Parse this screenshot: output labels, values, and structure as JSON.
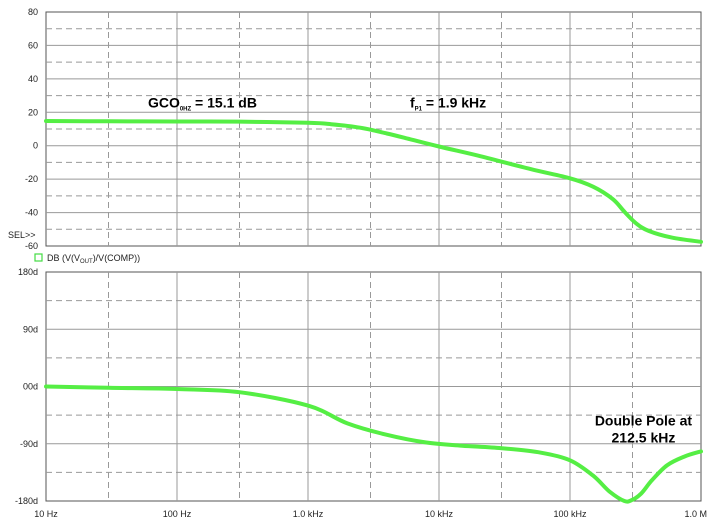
{
  "chart_data": [
    {
      "type": "line",
      "panel": "magnitude",
      "xscale": "log",
      "xlim": [
        10,
        1000000
      ],
      "ylim": [
        -60,
        80
      ],
      "yticks": [
        "80",
        "60",
        "40",
        "20",
        "0",
        "-20",
        "-40",
        "-60"
      ],
      "grid": true,
      "sel_marker": "SEL>>",
      "series": [
        {
          "color": "#55ee44",
          "x": [
            10,
            30,
            100,
            300,
            1000,
            1500,
            2500,
            4000,
            6000,
            10000,
            20000,
            50000,
            100000,
            150000,
            212500,
            260000,
            320000,
            400000,
            600000,
            1000000
          ],
          "y": [
            14.8,
            14.6,
            14.5,
            14.4,
            13.7,
            12.9,
            10.8,
            7.3,
            3.9,
            -0.5,
            -6.0,
            -14.0,
            -19.5,
            -24.5,
            -32.0,
            -39.5,
            -46.5,
            -51.0,
            -55.0,
            -57.5
          ]
        }
      ],
      "annotations": [
        {
          "main": "GCO",
          "sub": "0HZ",
          "tail": " = 15.1 dB",
          "at": [
            60,
            26
          ]
        },
        {
          "main": "f",
          "sub": "P1",
          "tail": " = 1.9 kHz",
          "at": [
            6000,
            26
          ]
        }
      ]
    },
    {
      "type": "line",
      "panel": "phase",
      "xscale": "log",
      "xlim": [
        10,
        1000000
      ],
      "ylim": [
        -180,
        180
      ],
      "yticks": [
        "180d",
        "90d",
        "00d",
        "-90d",
        "-180d"
      ],
      "xticks": [
        "10 Hz",
        "100 Hz",
        "1.0 kHz",
        "10 kHz",
        "100 kHz",
        "1.0 M"
      ],
      "grid": true,
      "legend": {
        "label_prefix": "DB (V(V",
        "label_sub": "OUT",
        "label_suffix": ")/V(COMP))"
      },
      "series": [
        {
          "color": "#55ee44",
          "x": [
            10,
            30,
            100,
            300,
            1000,
            2000,
            4000,
            8000,
            15000,
            30000,
            60000,
            100000,
            150000,
            200000,
            260000,
            300000,
            350000,
            420000,
            550000,
            750000,
            1000000
          ],
          "y": [
            0,
            -2,
            -4,
            -9,
            -30,
            -58,
            -76,
            -88,
            -93,
            -97,
            -104,
            -116,
            -140,
            -165,
            -180,
            -178,
            -168,
            -148,
            -124,
            -110,
            -102
          ]
        }
      ],
      "annotations": [
        {
          "lines": [
            "Double Pole at",
            "212.5 kHz"
          ],
          "at": [
            180000,
            -30
          ]
        }
      ]
    }
  ]
}
